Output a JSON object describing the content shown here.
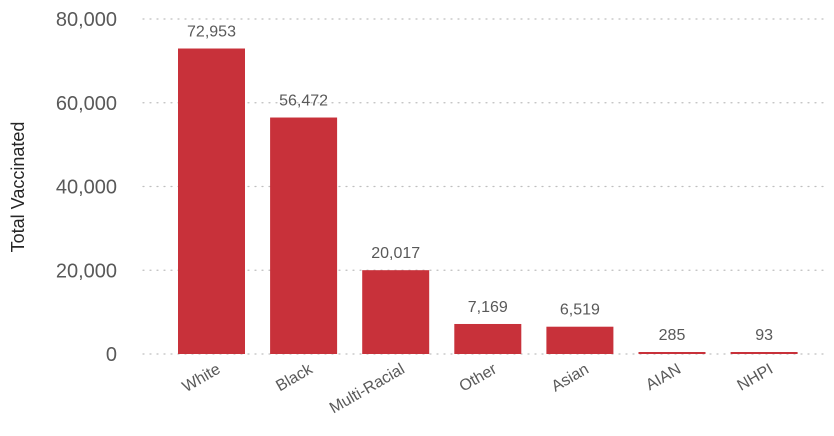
{
  "chart_data": {
    "type": "bar",
    "title": "",
    "xlabel": "",
    "ylabel": "Total Vaccinated",
    "categories": [
      "White",
      "Black",
      "Multi-Racial",
      "Other",
      "Asian",
      "AIAN",
      "NHPI"
    ],
    "values": [
      72953,
      56472,
      20017,
      7169,
      6519,
      285,
      93
    ],
    "data_labels": [
      "72,953",
      "56,472",
      "20,017",
      "7,169",
      "6,519",
      "285",
      "93"
    ],
    "ylim": [
      0,
      80000
    ],
    "yticks": [
      0,
      20000,
      40000,
      60000,
      80000
    ],
    "ytick_labels": [
      "0",
      "20,000",
      "40,000",
      "60,000",
      "80,000"
    ],
    "grid": true,
    "legend": "none",
    "bar_color": "#C8313A"
  }
}
